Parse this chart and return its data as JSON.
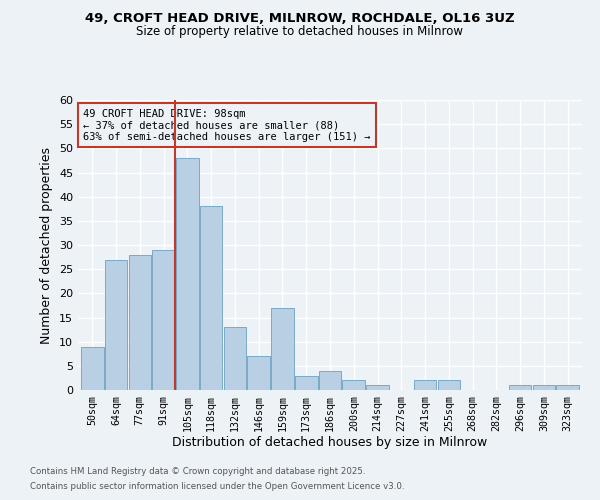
{
  "title1": "49, CROFT HEAD DRIVE, MILNROW, ROCHDALE, OL16 3UZ",
  "title2": "Size of property relative to detached houses in Milnrow",
  "xlabel": "Distribution of detached houses by size in Milnrow",
  "ylabel": "Number of detached properties",
  "categories": [
    "50sqm",
    "64sqm",
    "77sqm",
    "91sqm",
    "105sqm",
    "118sqm",
    "132sqm",
    "146sqm",
    "159sqm",
    "173sqm",
    "186sqm",
    "200sqm",
    "214sqm",
    "227sqm",
    "241sqm",
    "255sqm",
    "268sqm",
    "282sqm",
    "296sqm",
    "309sqm",
    "323sqm"
  ],
  "values": [
    9,
    27,
    28,
    29,
    48,
    38,
    13,
    7,
    17,
    3,
    4,
    2,
    1,
    0,
    2,
    2,
    0,
    0,
    1,
    1,
    1
  ],
  "bar_color": "#b8cfe4",
  "bar_edge_color": "#7aaac8",
  "vline_index": 3.5,
  "annotation_line1": "49 CROFT HEAD DRIVE: 98sqm",
  "annotation_line2": "← 37% of detached houses are smaller (88)",
  "annotation_line3": "63% of semi-detached houses are larger (151) →",
  "vline_color": "#c0392b",
  "ylim": [
    0,
    60
  ],
  "yticks": [
    0,
    5,
    10,
    15,
    20,
    25,
    30,
    35,
    40,
    45,
    50,
    55,
    60
  ],
  "footnote1": "Contains HM Land Registry data © Crown copyright and database right 2025.",
  "footnote2": "Contains public sector information licensed under the Open Government Licence v3.0.",
  "bg_color": "#edf2f7",
  "grid_color": "#ffffff"
}
